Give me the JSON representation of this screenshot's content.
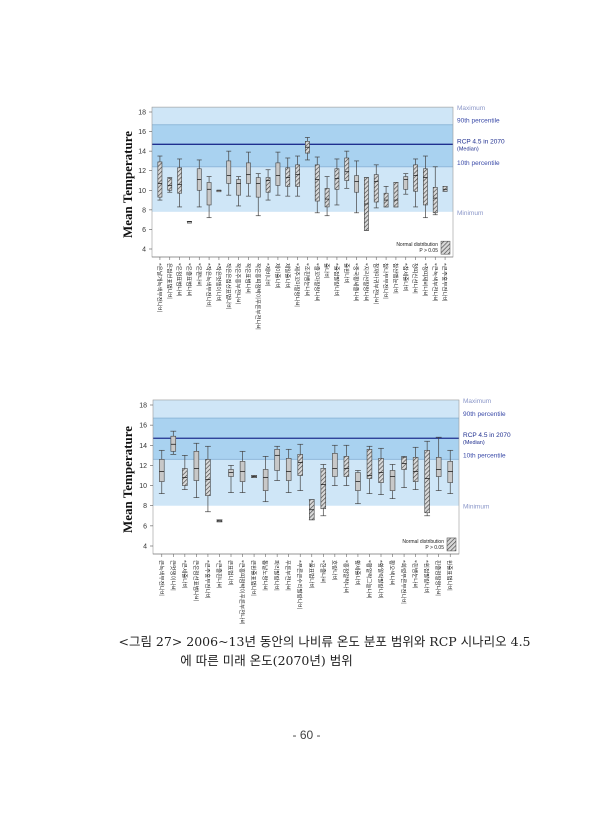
{
  "chart_data": [
    {
      "type": "box",
      "ylabel": "Mean Temperature",
      "ylim": [
        3,
        18.5
      ],
      "yticks": [
        4,
        6,
        8,
        10,
        12,
        14,
        16,
        18
      ],
      "bands": {
        "minimum": 7.8,
        "p10": 12.4,
        "median": 14.7,
        "p90": 16.7,
        "maximum": 18.5
      },
      "band_labels": {
        "maximum": "Maximum",
        "p90": "90th percentile",
        "median": "RCP 4.5 in 2070",
        "median_sub": "(Median)",
        "p10": "10th percentile",
        "minimum": "Minimum"
      },
      "legend": {
        "line1": "Normal distribution",
        "line2": "P > 0.05",
        "position": "bottom-right"
      },
      "categories": [
        "*은날개녹색부전나비",
        "은점선표범나비",
        "*은점표범나비",
        "*은줄표범나비",
        "*은판나비",
        "*작은녹색부전나비",
        "*작은멋쟁이나비",
        "작은은점선표범나비",
        "작은주홍부전나비",
        "작은표범나비",
        "작은홍띠점박이푸른부전나비",
        "*제비나비",
        "제이줄나비",
        "제일줄나비",
        "*제주꼬마팔랑나비",
        "*조흰뱀눈나비",
        "*줄꼬마팔랑나비",
        "줄나비",
        "*줄점팔랑나비",
        "줄흰나비",
        "*중국황세줄나비",
        "*지리산팔랑나비",
        "참까마귀부전나비",
        "참나무부전나비",
        "참산뱀눈나비",
        "*참세줄나비",
        "청띠신선나비",
        "*청띠제비나비",
        "*큰녹색부전나비",
        "*큰주홍부전나비"
      ],
      "boxes": [
        [
          9.0,
          9.3,
          10.7,
          12.9,
          13.5,
          1
        ],
        [
          9.8,
          10.0,
          10.5,
          11.2,
          11.3,
          1
        ],
        [
          8.3,
          9.7,
          10.6,
          12.3,
          13.2,
          1
        ],
        [
          6.8,
          6.8,
          6.8,
          6.8,
          6.8,
          0
        ],
        [
          8.3,
          10.0,
          11.1,
          12.2,
          13.1,
          0
        ],
        [
          7.2,
          8.5,
          10.1,
          10.8,
          11.4,
          0
        ],
        [
          10.0,
          10.0,
          10.0,
          10.0,
          10.0,
          0
        ],
        [
          9.5,
          10.7,
          11.5,
          13.0,
          14.0,
          0
        ],
        [
          8.4,
          9.5,
          10.7,
          11.1,
          11.4,
          0
        ],
        [
          9.4,
          10.7,
          11.6,
          12.8,
          13.9,
          0
        ],
        [
          7.4,
          9.3,
          10.7,
          11.3,
          11.7,
          0
        ],
        [
          9.0,
          9.8,
          11.0,
          11.3,
          12.1,
          1
        ],
        [
          9.5,
          10.5,
          11.5,
          12.8,
          13.9,
          0
        ],
        [
          9.4,
          10.4,
          11.3,
          12.3,
          13.3,
          1
        ],
        [
          9.4,
          10.4,
          11.6,
          12.6,
          13.5,
          1
        ],
        [
          13.1,
          13.8,
          14.4,
          15.0,
          15.4,
          1
        ],
        [
          7.7,
          8.9,
          11.1,
          12.6,
          13.4,
          1
        ],
        [
          7.4,
          8.3,
          9.1,
          10.2,
          11.4,
          1
        ],
        [
          8.5,
          10.1,
          11.2,
          12.2,
          13.2,
          1
        ],
        [
          10.2,
          11.0,
          11.9,
          13.3,
          14.0,
          1
        ],
        [
          7.7,
          9.8,
          10.9,
          11.5,
          13.0,
          0
        ],
        [
          5.9,
          5.9,
          8.6,
          11.3,
          11.3,
          1
        ],
        [
          8.2,
          8.8,
          10.9,
          11.6,
          12.6,
          1
        ],
        [
          8.3,
          8.3,
          9.0,
          9.7,
          10.4,
          1
        ],
        [
          8.3,
          8.3,
          9.0,
          10.8,
          10.8,
          1
        ],
        [
          9.6,
          10.1,
          11.1,
          11.4,
          11.7,
          0
        ],
        [
          8.3,
          9.9,
          11.5,
          12.6,
          13.2,
          1
        ],
        [
          7.2,
          8.5,
          11.3,
          12.2,
          13.5,
          1
        ],
        [
          7.5,
          7.7,
          9.2,
          10.3,
          12.4,
          1
        ],
        [
          9.9,
          9.9,
          10.1,
          10.4,
          10.4,
          1
        ]
      ],
      "box_fields": [
        "min",
        "q1",
        "median",
        "q3",
        "max",
        "normal_distribution"
      ]
    },
    {
      "type": "box",
      "ylabel": "Mean Temperature",
      "ylim": [
        3,
        18.5
      ],
      "yticks": [
        4,
        6,
        8,
        10,
        12,
        14,
        16,
        18
      ],
      "bands": {
        "minimum": 8.0,
        "p10": 12.6,
        "median": 14.7,
        "p90": 16.7,
        "maximum": 18.5
      },
      "band_labels": {
        "maximum": "Maximum",
        "p90": "90th percentile",
        "median": "RCP 4.5 in 2070",
        "median_sub": "(Median)",
        "p10": "10th percentile",
        "minimum": "Minimum"
      },
      "legend": {
        "line1": "Normal distribution",
        "line2": "P > 0.05",
        "position": "bottom-right"
      },
      "categories": [
        "큰녹색부전나비",
        "큰멋쟁이나비",
        "*큰세줄나비",
        "큰은점선표범나비",
        "*큰주홍부전나비",
        "*큰줄흰나비",
        "큰표범나비",
        "*큰홍띠점박이푸른부전나비",
        "큰흰줄표범나비",
        "톱날노랑나비",
        "파리팔랑나비",
        "푸른부전나비",
        "*푸른큰수리팔랑나비",
        "*풀표범나비",
        "*한줄나비",
        "호랑나비",
        "*홍점알락나비",
        "황세줄나비",
        "*황알락그늘나비",
        "*황알락팔랑나비",
        "황오색나비",
        "*회령푸른부전나비",
        "*흰뱀눈나비",
        "*흰점팔랑나비",
        "흰줄점팔랑나비",
        "흰줄표범나비"
      ],
      "boxes": [
        [
          9.2,
          10.4,
          11.4,
          12.6,
          13.5,
          0
        ],
        [
          13.1,
          13.4,
          14.1,
          14.9,
          15.4,
          0
        ],
        [
          9.6,
          10.0,
          10.8,
          11.7,
          13.0,
          1
        ],
        [
          8.8,
          10.5,
          11.7,
          13.4,
          14.2,
          0
        ],
        [
          7.4,
          9.0,
          10.6,
          12.6,
          13.9,
          1
        ],
        [
          6.4,
          6.4,
          6.5,
          6.6,
          6.6,
          1
        ],
        [
          9.3,
          10.9,
          11.3,
          11.6,
          12.0,
          0
        ],
        [
          9.3,
          10.4,
          11.4,
          12.4,
          13.4,
          0
        ],
        [
          10.8,
          10.8,
          10.9,
          11.0,
          11.0,
          1
        ],
        [
          8.4,
          9.5,
          10.8,
          11.6,
          12.9,
          0
        ],
        [
          10.5,
          11.5,
          13.0,
          13.6,
          13.9,
          0
        ],
        [
          9.3,
          10.5,
          11.4,
          12.7,
          13.6,
          0
        ],
        [
          9.5,
          11.0,
          12.3,
          13.1,
          14.1,
          1
        ],
        [
          6.6,
          6.6,
          7.6,
          8.6,
          8.6,
          1
        ],
        [
          7.0,
          7.7,
          10.1,
          11.7,
          12.1,
          1
        ],
        [
          10.0,
          10.9,
          11.7,
          13.2,
          14.0,
          0
        ],
        [
          10.0,
          10.9,
          11.7,
          12.9,
          14.0,
          1
        ],
        [
          8.2,
          9.5,
          10.4,
          11.3,
          11.5,
          0
        ],
        [
          9.2,
          10.7,
          11.0,
          13.6,
          13.9,
          1
        ],
        [
          9.1,
          10.3,
          11.3,
          12.7,
          13.7,
          1
        ],
        [
          8.7,
          9.5,
          10.9,
          11.5,
          12.1,
          0
        ],
        [
          9.8,
          11.6,
          12.2,
          12.8,
          12.9,
          1
        ],
        [
          9.6,
          10.4,
          11.4,
          12.8,
          13.8,
          1
        ],
        [
          7.0,
          7.3,
          10.7,
          13.5,
          14.4,
          1
        ],
        [
          9.5,
          10.9,
          11.6,
          12.8,
          14.8,
          0
        ],
        [
          9.2,
          10.3,
          11.4,
          12.4,
          13.5,
          0
        ]
      ],
      "box_fields": [
        "min",
        "q1",
        "median",
        "q3",
        "max",
        "normal_distribution"
      ]
    }
  ],
  "caption": {
    "line1": "<그림 27> 2006~13년 동안의 나비류 온도 분포 범위와 RCP 시나리오 4.5",
    "line2": "에 따른 미래 온도(2070년) 범위"
  },
  "page_number": "- 60 -",
  "colors": {
    "band_outer": "#cfe6f7",
    "band_inner": "#a9d2f0",
    "median_line": "#1f2f8f",
    "box_fill": "#c8c8c8",
    "label_light": "#8a96c8"
  }
}
